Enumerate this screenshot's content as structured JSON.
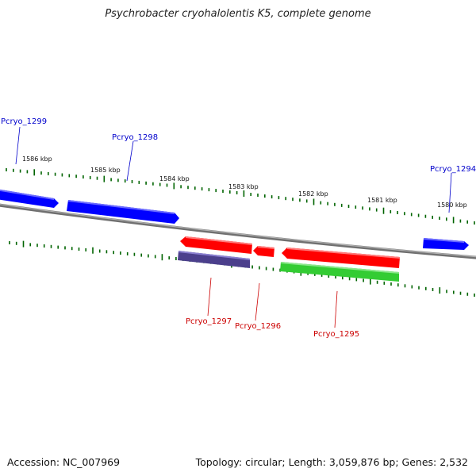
{
  "title": "Psychrobacter cryohalolentis K5, complete genome",
  "footer": {
    "accession": "Accession: NC_007969",
    "summary": "Topology: circular; Length: 3,059,876 bp; Genes: 2,532"
  },
  "colors": {
    "forward_gene": "#0000ff",
    "reverse_gene": "#ff0000",
    "rrna_gene": "#4b3f8c",
    "trna_gene": "#33cc33",
    "backbone": "#888888",
    "ticks": "#006400"
  },
  "scale_labels": [
    "1586 kbp",
    "1585 kbp",
    "1584 kbp",
    "1583 kbp",
    "1582 kbp",
    "1581 kbp",
    "1580 kbp"
  ],
  "genes": [
    {
      "label": "Pcryo_1299",
      "strand": "forward",
      "color": "blue"
    },
    {
      "label": "Pcryo_1298",
      "strand": "forward",
      "color": "blue"
    },
    {
      "label": "Pcryo_1294",
      "strand": "forward",
      "color": "blue"
    },
    {
      "label": "Pcryo_1297",
      "strand": "reverse",
      "color": "red"
    },
    {
      "label": "Pcryo_1296",
      "strand": "reverse",
      "color": "red"
    },
    {
      "label": "Pcryo_1295",
      "strand": "reverse",
      "color": "red"
    }
  ]
}
